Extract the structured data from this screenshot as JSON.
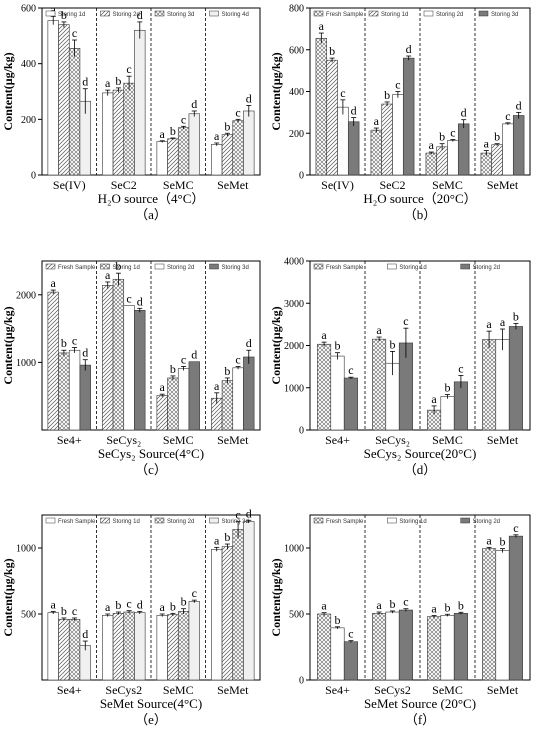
{
  "y_label": "Content(μg/kg)",
  "chart_data": [
    {
      "id": "a",
      "type": "bar",
      "categories": [
        "Se(IV)",
        "SeC2",
        "SeMC",
        "SeMet"
      ],
      "series": [
        {
          "name": "Storing 1d",
          "pattern": "blank",
          "values": [
            555,
            295,
            120,
            110
          ],
          "errors": [
            15,
            10,
            3,
            5
          ],
          "sig": [
            "a",
            "a",
            "a",
            "a"
          ]
        },
        {
          "name": "Storing 2d",
          "pattern": "hatch",
          "values": [
            540,
            305,
            130,
            145
          ],
          "errors": [
            10,
            8,
            3,
            5
          ],
          "sig": [
            "b",
            "b",
            "b",
            "b"
          ]
        },
        {
          "name": "Storing 3d",
          "pattern": "cross",
          "values": [
            455,
            330,
            170,
            195
          ],
          "errors": [
            30,
            25,
            5,
            5
          ],
          "sig": [
            "c",
            "c",
            "c",
            "c"
          ]
        },
        {
          "name": "Storing 4d",
          "pattern": "light",
          "values": [
            265,
            520,
            220,
            230
          ],
          "errors": [
            45,
            30,
            10,
            20
          ],
          "sig": [
            "d",
            "d",
            "d",
            "d"
          ]
        }
      ],
      "ylim": [
        0,
        600
      ],
      "yticks": [
        0,
        200,
        400,
        600
      ],
      "xlabel": "H₂O source（4°C）",
      "panel_label": "（a）",
      "legend_position": "top"
    },
    {
      "id": "b",
      "type": "bar",
      "categories": [
        "Se(IV)",
        "SeC2",
        "SeMC",
        "SeMet"
      ],
      "series": [
        {
          "name": "Fresh Sample",
          "pattern": "cross",
          "values": [
            655,
            215,
            105,
            105
          ],
          "errors": [
            25,
            10,
            5,
            12
          ],
          "sig": [
            "a",
            "a",
            "a",
            "a"
          ]
        },
        {
          "name": "Storing 1d",
          "pattern": "hatch",
          "values": [
            550,
            340,
            135,
            145
          ],
          "errors": [
            10,
            10,
            15,
            5
          ],
          "sig": [
            "b",
            "b",
            "b",
            "b"
          ]
        },
        {
          "name": "Storing 2d",
          "pattern": "blank",
          "values": [
            325,
            385,
            165,
            245
          ],
          "errors": [
            35,
            15,
            5,
            5
          ],
          "sig": [
            "c",
            "c",
            "c",
            "c"
          ]
        },
        {
          "name": "Storing 3d",
          "pattern": "dark",
          "values": [
            255,
            560,
            245,
            285
          ],
          "errors": [
            20,
            10,
            20,
            15
          ],
          "sig": [
            "d",
            "d",
            "d",
            "d"
          ]
        }
      ],
      "ylim": [
        0,
        800
      ],
      "yticks": [
        0,
        200,
        400,
        600,
        800
      ],
      "xlabel": "H₂O source（20°C）",
      "panel_label": "（b）",
      "legend_position": "top"
    },
    {
      "id": "c",
      "type": "bar",
      "categories": [
        "Se4+",
        "SeCys₂",
        "SeMC",
        "SeMet"
      ],
      "series": [
        {
          "name": "Fresh Sample",
          "pattern": "hatch",
          "values": [
            2040,
            2140,
            510,
            470
          ],
          "errors": [
            30,
            50,
            20,
            80
          ],
          "sig": [
            "a",
            "a",
            "a",
            "a"
          ]
        },
        {
          "name": "Storing 1d",
          "pattern": "cross",
          "values": [
            1140,
            2230,
            770,
            730
          ],
          "errors": [
            40,
            90,
            30,
            40
          ],
          "sig": [
            "b",
            "b",
            "b",
            "b"
          ]
        },
        {
          "name": "Storing 2d",
          "pattern": "blank",
          "values": [
            1180,
            1840,
            910,
            920
          ],
          "errors": [
            40,
            0,
            30,
            20
          ],
          "sig": [
            "c",
            "c",
            "c",
            "c"
          ]
        },
        {
          "name": "Storing 3d",
          "pattern": "dark",
          "values": [
            960,
            1770,
            1010,
            1080
          ],
          "errors": [
            80,
            30,
            0,
            100
          ],
          "sig": [
            "d",
            "d",
            "d",
            "d"
          ]
        }
      ],
      "ylim": [
        0,
        2500
      ],
      "yticks": [
        1000,
        2000
      ],
      "xlabel": "SeCys₂ Source(4°C)",
      "panel_label": "（c）",
      "legend_position": "top"
    },
    {
      "id": "d",
      "type": "bar",
      "categories": [
        "Se4+",
        "SeCys₂",
        "SeMC",
        "SeMet"
      ],
      "series": [
        {
          "name": "Fresh Sample",
          "pattern": "cross",
          "values": [
            2030,
            2150,
            470,
            2140
          ],
          "errors": [
            50,
            50,
            100,
            200
          ],
          "sig": [
            "a",
            "a",
            "a",
            "a"
          ]
        },
        {
          "name": "Storing 1d",
          "pattern": "blank",
          "values": [
            1750,
            1580,
            790,
            2140
          ],
          "errors": [
            80,
            280,
            50,
            250
          ],
          "sig": [
            "b",
            "b",
            "b",
            "a"
          ]
        },
        {
          "name": "Storing 2d",
          "pattern": "dark",
          "values": [
            1230,
            2060,
            1140,
            2450
          ],
          "errors": [
            20,
            350,
            150,
            70
          ],
          "sig": [
            "c",
            "c",
            "c",
            "b"
          ]
        }
      ],
      "ylim": [
        0,
        4000
      ],
      "yticks": [
        0,
        1000,
        2000,
        3000,
        4000
      ],
      "xlabel": "SeCys₂ Source(20°C)",
      "panel_label": "（d）",
      "legend_position": "top"
    },
    {
      "id": "e",
      "type": "bar",
      "categories": [
        "Se4+",
        "SeCys2",
        "SeMC",
        "SeMet"
      ],
      "series": [
        {
          "name": "Fresh Sample",
          "pattern": "blank",
          "values": [
            510,
            490,
            490,
            990
          ],
          "errors": [
            10,
            10,
            10,
            15
          ],
          "sig": [
            "a",
            "a",
            "a",
            "a"
          ]
        },
        {
          "name": "Storing 1d",
          "pattern": "hatch",
          "values": [
            460,
            505,
            495,
            1010
          ],
          "errors": [
            10,
            10,
            10,
            20
          ],
          "sig": [
            "b",
            "b",
            "b",
            "b"
          ]
        },
        {
          "name": "Storing 2d",
          "pattern": "cross",
          "values": [
            460,
            515,
            520,
            1140
          ],
          "errors": [
            10,
            10,
            20,
            60
          ],
          "sig": [
            "c",
            "c",
            "b",
            "c"
          ]
        },
        {
          "name": "Storing 3d",
          "pattern": "light",
          "values": [
            260,
            510,
            595,
            1200
          ],
          "errors": [
            35,
            10,
            10,
            10
          ],
          "sig": [
            "d",
            "d",
            "c",
            "d"
          ]
        }
      ],
      "ylim": [
        0,
        1250
      ],
      "yticks": [
        500,
        1000
      ],
      "xlabel": "SeMet Source(4°C)",
      "panel_label": "（e）",
      "legend_position": "top"
    },
    {
      "id": "f",
      "type": "bar",
      "categories": [
        "Se4+",
        "SeCys2",
        "SeMC",
        "SeMet"
      ],
      "series": [
        {
          "name": "Fresh Sample",
          "pattern": "cross",
          "values": [
            500,
            505,
            480,
            995
          ],
          "errors": [
            10,
            10,
            8,
            10
          ],
          "sig": [
            "a",
            "a",
            "a",
            "a"
          ]
        },
        {
          "name": "Storing 1d",
          "pattern": "blank",
          "values": [
            395,
            515,
            490,
            980
          ],
          "errors": [
            8,
            8,
            8,
            15
          ],
          "sig": [
            "b",
            "b",
            "b",
            "b"
          ]
        },
        {
          "name": "Storing 2d",
          "pattern": "dark",
          "values": [
            290,
            530,
            505,
            1090
          ],
          "errors": [
            8,
            10,
            8,
            10
          ],
          "sig": [
            "c",
            "c",
            "b",
            "c"
          ]
        }
      ],
      "ylim": [
        0,
        1250
      ],
      "yticks": [
        0,
        500,
        1000
      ],
      "xlabel": "SeMet Source (20°C)",
      "panel_label": "（f）",
      "legend_position": "top"
    }
  ]
}
